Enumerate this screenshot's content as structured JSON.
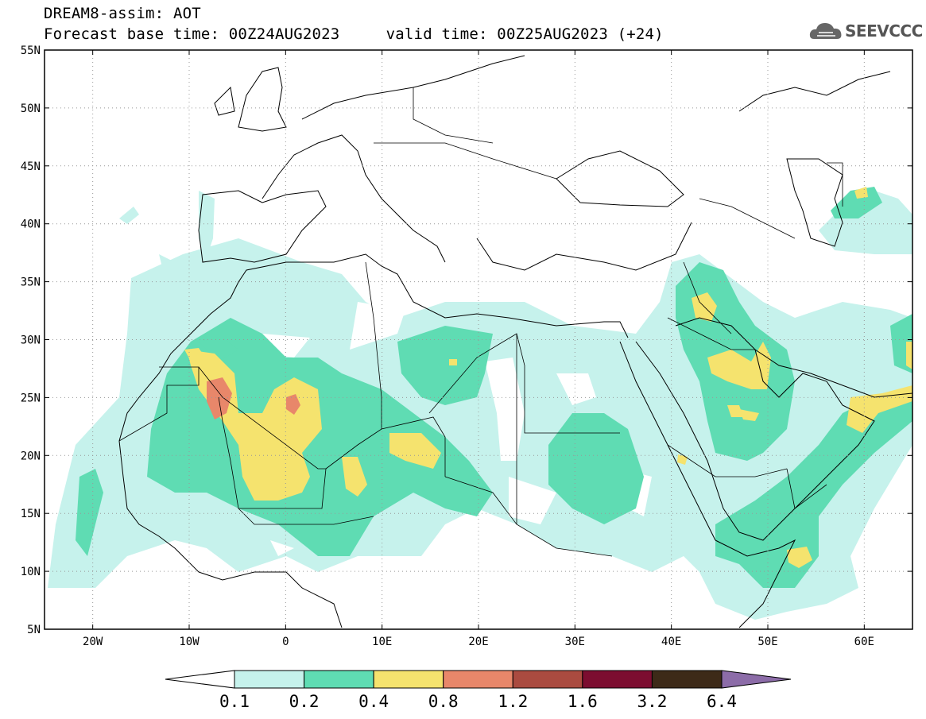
{
  "header": {
    "line1": "DREAM8-assim: AOT",
    "line2": "Forecast base time: 00Z24AUG2023     valid time: 00Z25AUG2023 (+24)"
  },
  "logo": {
    "text": "SEEVCCC",
    "icon": "cloud-icon"
  },
  "map": {
    "projection": "cylindrical",
    "lon_range": [
      -25,
      65
    ],
    "lat_range": [
      5,
      55
    ],
    "lat_labels": [
      "55N",
      "50N",
      "45N",
      "40N",
      "35N",
      "30N",
      "25N",
      "20N",
      "15N",
      "10N",
      "5N"
    ],
    "lat_values": [
      55,
      50,
      45,
      40,
      35,
      30,
      25,
      20,
      15,
      10,
      5
    ],
    "lon_labels": [
      "20W",
      "10W",
      "0",
      "10E",
      "20E",
      "30E",
      "40E",
      "50E",
      "60E"
    ],
    "lon_values": [
      -20,
      -10,
      0,
      10,
      20,
      30,
      40,
      50,
      60
    ],
    "grid": "dotted"
  },
  "colorbar": {
    "labels": [
      "0.1",
      "0.2",
      "0.4",
      "0.8",
      "1.2",
      "1.6",
      "3.2",
      "6.4"
    ],
    "colors": [
      "#c6f2ec",
      "#5fdcb3",
      "#f5e36e",
      "#e8876a",
      "#aa4b40",
      "#7c0d30",
      "#3d2a18"
    ],
    "under_color": "#ffffff",
    "over_color": "#8c6ca8"
  }
}
